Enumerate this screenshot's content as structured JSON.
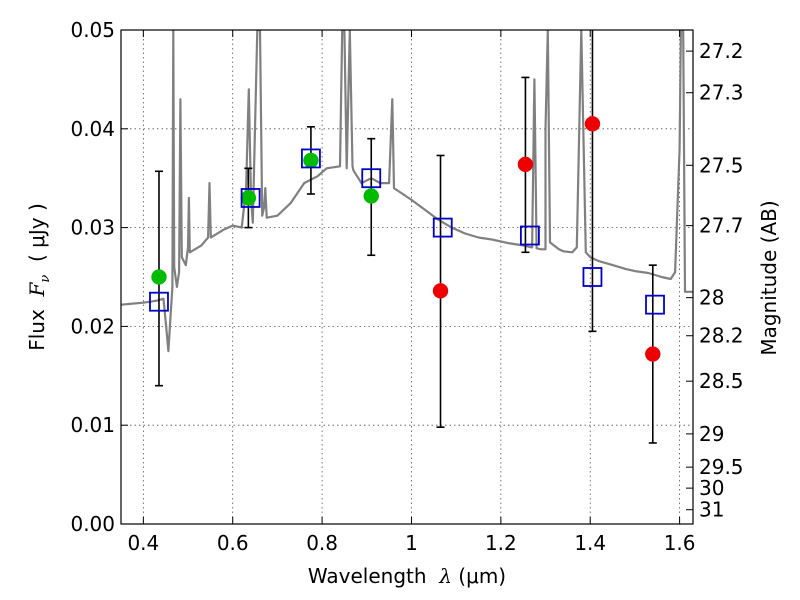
{
  "chart_data": {
    "type": "scatter",
    "xlabel": {
      "prefix": "Wavelength  ",
      "symbol": "λ",
      "suffix": " (μm)"
    },
    "ylabel": {
      "prefix": "Flux  ",
      "symbol": "F",
      "sub": "ν",
      "suffix": "  ( μJy )"
    },
    "y2label": "Magnitude (AB)",
    "xlim": [
      0.35,
      1.63
    ],
    "ylim": [
      0.0,
      0.05
    ],
    "grid": true,
    "x_ticks": [
      {
        "v": 0.4,
        "label": "0.4"
      },
      {
        "v": 0.6,
        "label": "0.6"
      },
      {
        "v": 0.8,
        "label": "0.8"
      },
      {
        "v": 1.0,
        "label": "1"
      },
      {
        "v": 1.2,
        "label": "1.2"
      },
      {
        "v": 1.4,
        "label": "1.4"
      },
      {
        "v": 1.6,
        "label": "1.6"
      }
    ],
    "y_ticks": [
      {
        "v": 0.0,
        "label": "0.00"
      },
      {
        "v": 0.01,
        "label": "0.01"
      },
      {
        "v": 0.02,
        "label": "0.02"
      },
      {
        "v": 0.03,
        "label": "0.03"
      },
      {
        "v": 0.04,
        "label": "0.04"
      },
      {
        "v": 0.05,
        "label": "0.05"
      }
    ],
    "y2_ticks": [
      {
        "mag": 27.2,
        "label": "27.2"
      },
      {
        "mag": 27.3,
        "label": "27.3"
      },
      {
        "mag": 27.5,
        "label": "27.5"
      },
      {
        "mag": 27.7,
        "label": "27.7"
      },
      {
        "mag": 28.0,
        "label": "28"
      },
      {
        "mag": 28.2,
        "label": "28.2"
      },
      {
        "mag": 28.5,
        "label": "28.5"
      },
      {
        "mag": 29.0,
        "label": "29"
      },
      {
        "mag": 29.5,
        "label": "29.5"
      },
      {
        "mag": 30.0,
        "label": "30"
      },
      {
        "mag": 31.0,
        "label": "31"
      }
    ],
    "colors": {
      "sed": "#808080",
      "model": "#0000cc",
      "detection": "#00bb00",
      "upper": "#ee0000",
      "errorbar": "#000000",
      "grid": "#555555"
    },
    "sed_model": [
      [
        0.35,
        0.0222
      ],
      [
        0.4,
        0.0224
      ],
      [
        0.43,
        0.0226
      ],
      [
        0.445,
        0.0228
      ],
      [
        0.452,
        0.0195
      ],
      [
        0.456,
        0.0175
      ],
      [
        0.46,
        0.0205
      ],
      [
        0.465,
        0.024
      ],
      [
        0.467,
        0.05
      ],
      [
        0.469,
        0.026
      ],
      [
        0.475,
        0.024
      ],
      [
        0.48,
        0.0255
      ],
      [
        0.483,
        0.043
      ],
      [
        0.486,
        0.027
      ],
      [
        0.495,
        0.0262
      ],
      [
        0.5,
        0.028
      ],
      [
        0.502,
        0.033
      ],
      [
        0.504,
        0.0275
      ],
      [
        0.53,
        0.0282
      ],
      [
        0.545,
        0.029
      ],
      [
        0.548,
        0.0345
      ],
      [
        0.551,
        0.029
      ],
      [
        0.58,
        0.0298
      ],
      [
        0.6,
        0.0302
      ],
      [
        0.62,
        0.03
      ],
      [
        0.63,
        0.034
      ],
      [
        0.636,
        0.044
      ],
      [
        0.641,
        0.033
      ],
      [
        0.645,
        0.0305
      ],
      [
        0.655,
        0.05
      ],
      [
        0.661,
        0.05
      ],
      [
        0.666,
        0.0312
      ],
      [
        0.67,
        0.032
      ],
      [
        0.673,
        0.034
      ],
      [
        0.676,
        0.031
      ],
      [
        0.7,
        0.0312
      ],
      [
        0.73,
        0.0325
      ],
      [
        0.76,
        0.0345
      ],
      [
        0.79,
        0.0352
      ],
      [
        0.81,
        0.036
      ],
      [
        0.84,
        0.0362
      ],
      [
        0.845,
        0.05
      ],
      [
        0.85,
        0.05
      ],
      [
        0.855,
        0.036
      ],
      [
        0.862,
        0.05
      ],
      [
        0.868,
        0.0362
      ],
      [
        0.87,
        0.0358
      ],
      [
        0.888,
        0.0345
      ],
      [
        0.91,
        0.035
      ],
      [
        0.93,
        0.0345
      ],
      [
        0.95,
        0.0345
      ],
      [
        0.957,
        0.043
      ],
      [
        0.961,
        0.034
      ],
      [
        1.0,
        0.0328
      ],
      [
        1.03,
        0.0318
      ],
      [
        1.06,
        0.0308
      ],
      [
        1.09,
        0.03
      ],
      [
        1.1,
        0.0298
      ],
      [
        1.12,
        0.0294
      ],
      [
        1.15,
        0.029
      ],
      [
        1.18,
        0.0288
      ],
      [
        1.2,
        0.0286
      ],
      [
        1.22,
        0.0284
      ],
      [
        1.25,
        0.0282
      ],
      [
        1.27,
        0.028
      ],
      [
        1.275,
        0.045
      ],
      [
        1.28,
        0.0279
      ],
      [
        1.29,
        0.0278
      ],
      [
        1.3,
        0.0278
      ],
      [
        1.3,
        0.04
      ],
      [
        1.305,
        0.05
      ],
      [
        1.31,
        0.0285
      ],
      [
        1.33,
        0.0278
      ],
      [
        1.34,
        0.0276
      ],
      [
        1.36,
        0.0275
      ],
      [
        1.37,
        0.028
      ],
      [
        1.38,
        0.05
      ],
      [
        1.39,
        0.0275
      ],
      [
        1.4,
        0.027
      ],
      [
        1.42,
        0.0266
      ],
      [
        1.45,
        0.0262
      ],
      [
        1.48,
        0.0258
      ],
      [
        1.5,
        0.0256
      ],
      [
        1.53,
        0.0254
      ],
      [
        1.56,
        0.025
      ],
      [
        1.58,
        0.0248
      ],
      [
        1.59,
        0.0255
      ],
      [
        1.6,
        0.038
      ],
      [
        1.603,
        0.05
      ],
      [
        1.608,
        0.05
      ],
      [
        1.612,
        0.0235
      ],
      [
        1.63,
        0.0235
      ]
    ],
    "model_points": [
      {
        "x": 0.435,
        "y": 0.0225
      },
      {
        "x": 0.64,
        "y": 0.033
      },
      {
        "x": 0.775,
        "y": 0.037
      },
      {
        "x": 0.91,
        "y": 0.035
      },
      {
        "x": 1.07,
        "y": 0.03
      },
      {
        "x": 1.265,
        "y": 0.0292
      },
      {
        "x": 1.405,
        "y": 0.025
      },
      {
        "x": 1.545,
        "y": 0.0222
      }
    ],
    "observed": [
      {
        "x": 0.435,
        "y": 0.025,
        "yerr_low": 0.014,
        "yerr_high": 0.0357,
        "kind": "detection"
      },
      {
        "x": 0.635,
        "y": 0.033,
        "yerr_low": 0.03,
        "yerr_high": 0.036,
        "kind": "detection"
      },
      {
        "x": 0.775,
        "y": 0.0368,
        "yerr_low": 0.0334,
        "yerr_high": 0.0402,
        "kind": "detection"
      },
      {
        "x": 0.91,
        "y": 0.0332,
        "yerr_low": 0.0272,
        "yerr_high": 0.039,
        "kind": "detection"
      },
      {
        "x": 1.065,
        "y": 0.0236,
        "yerr_low": 0.0098,
        "yerr_high": 0.0373,
        "kind": "upper"
      },
      {
        "x": 1.255,
        "y": 0.0364,
        "yerr_low": 0.0275,
        "yerr_high": 0.0452,
        "kind": "upper"
      },
      {
        "x": 1.405,
        "y": 0.0405,
        "yerr_low": 0.0195,
        "yerr_high": 0.05,
        "kind": "upper"
      },
      {
        "x": 1.54,
        "y": 0.0172,
        "yerr_low": 0.0082,
        "yerr_high": 0.0262,
        "kind": "upper"
      }
    ]
  }
}
